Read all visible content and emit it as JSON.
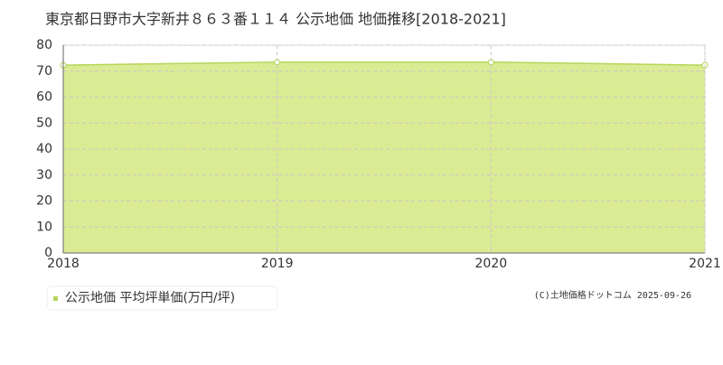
{
  "chart_data": {
    "type": "area",
    "title": "東京都日野市大字新井８６３番１１４ 公示地価 地価推移[2018-2021]",
    "x": [
      2018,
      2019,
      2020,
      2021
    ],
    "series": [
      {
        "name": "公示地価 平均坪単価(万円/坪)",
        "color": "#dbeb94",
        "line_color": "#b5d65a",
        "values": [
          72.3,
          73.5,
          73.5,
          72.3
        ]
      }
    ],
    "xlim": [
      2018,
      2021
    ],
    "xticks": [
      2018,
      2019,
      2020,
      2021
    ],
    "ylim": [
      0,
      80
    ],
    "yticks": [
      0,
      10,
      20,
      30,
      40,
      50,
      60,
      70,
      80
    ],
    "grid": true,
    "legend": "bottom-left",
    "credit": "(C)土地価格ドットコム 2025-09-26"
  }
}
